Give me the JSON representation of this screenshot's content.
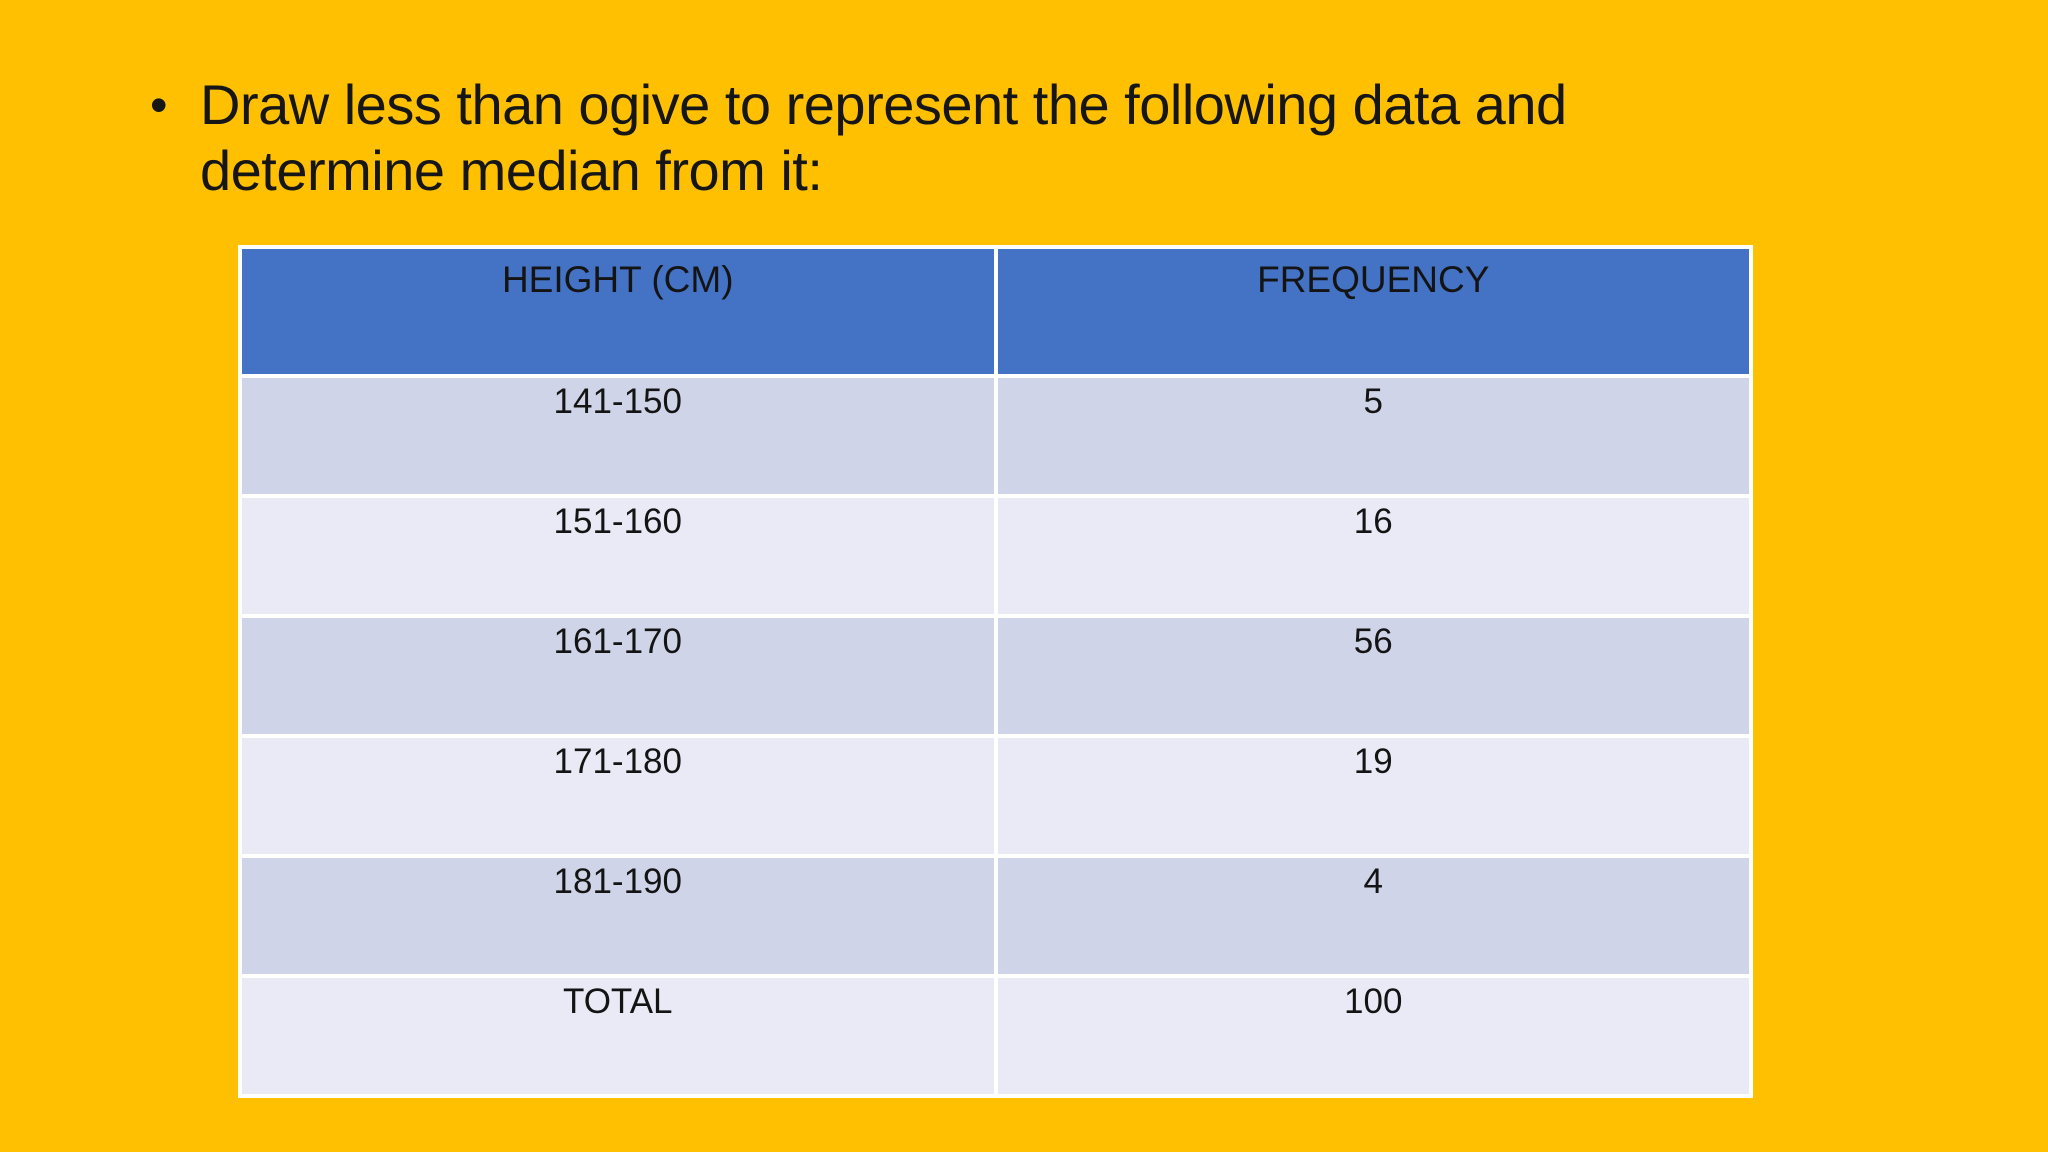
{
  "slide": {
    "background_color": "#FFC002",
    "text_color": "#161616",
    "bullet": "•",
    "title_lines": [
      "Draw less than ogive to represent the following data and",
      "determine median from it:"
    ]
  },
  "table": {
    "header": {
      "height_label": "HEIGHT (CM)",
      "frequency_label": "FREQUENCY",
      "background_color": "#4472C4"
    },
    "band_colors": {
      "dark": "#CFD4E8",
      "light": "#E9EAF5"
    },
    "rows": [
      {
        "height": "141-150",
        "frequency": "5"
      },
      {
        "height": "151-160",
        "frequency": "16"
      },
      {
        "height": "161-170",
        "frequency": "56"
      },
      {
        "height": "171-180",
        "frequency": "19"
      },
      {
        "height": "181-190",
        "frequency": "4"
      },
      {
        "height": "TOTAL",
        "frequency": "100"
      }
    ]
  },
  "chart_data": {
    "type": "table",
    "title": "Draw less than ogive to represent the following data and determine median from it:",
    "columns": [
      "HEIGHT (CM)",
      "FREQUENCY"
    ],
    "categories": [
      "141-150",
      "151-160",
      "161-170",
      "171-180",
      "181-190"
    ],
    "values": [
      5,
      16,
      56,
      19,
      4
    ],
    "total": 100
  }
}
